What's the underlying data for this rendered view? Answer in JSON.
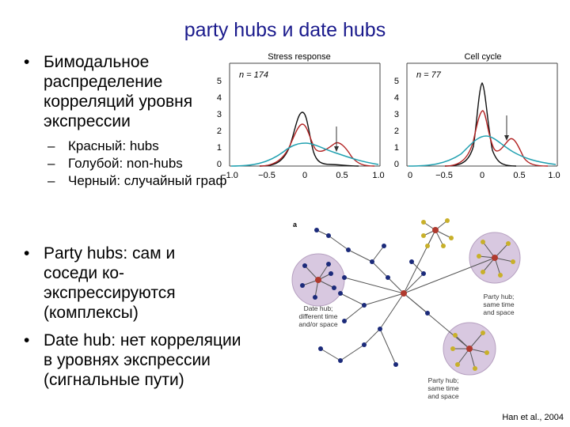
{
  "slide": {
    "title": "party hubs и date hubs",
    "bullet1": "Бимодальное распределение корреляций уровня экспрессии",
    "sub_items": [
      "Красный: hubs",
      "Голубой: non-hubs",
      "Черный: случайный граф"
    ],
    "bullet2": "Party hubs: сам и соседи ко-экспрессируются (комплексы)",
    "bullet3": "Date hub: нет корреляции в уровнях экспрессии (сигнальные пути)",
    "citation": "Han et al., 2004"
  },
  "plots": [
    {
      "title": "Stress response",
      "n_label": "n = 174",
      "yticks": [
        "5",
        "4",
        "3",
        "2",
        "1",
        "0"
      ],
      "xticks": [
        "−1.0",
        "−0.5",
        "0",
        "0.5",
        "1.0"
      ]
    },
    {
      "title": "Cell cycle",
      "n_label": "n = 77",
      "yticks": [
        "5",
        "4",
        "3",
        "2",
        "1",
        "0"
      ],
      "xticks": [
        "0",
        "−0.5",
        "0",
        "0.5",
        "1.0"
      ]
    }
  ],
  "network": {
    "panel_label": "a",
    "labels": {
      "date_hub": [
        "Date hub;",
        "different time",
        "and/or space"
      ],
      "party_hub_right": [
        "Party hub;",
        "same time",
        "and space"
      ],
      "party_hub_bottom": [
        "Party hub;",
        "same time",
        "and space"
      ]
    }
  },
  "colors": {
    "title": "#1a1a8c",
    "hubs": "#b22222",
    "non_hubs": "#20a0b0",
    "random": "#111111",
    "hub_circle": "#d8c8e0",
    "node": "#1b2a7a",
    "party_node": "#c8b02a",
    "hub_center": "#b03a2e"
  }
}
